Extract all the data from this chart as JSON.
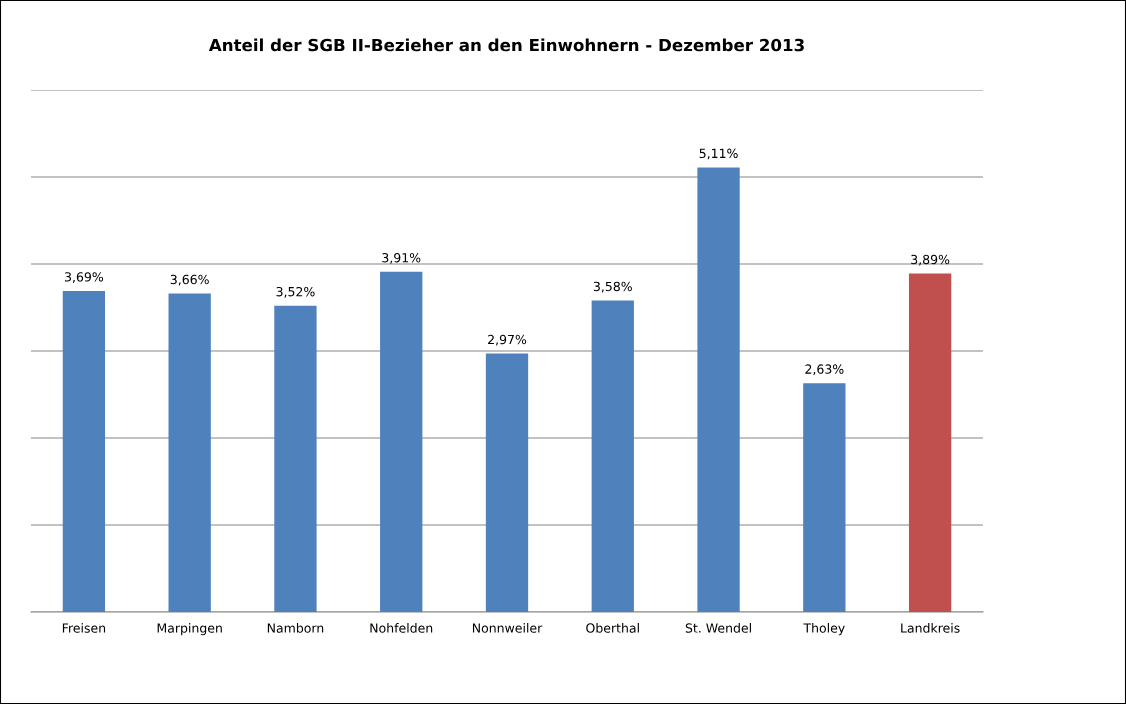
{
  "chart_data": {
    "type": "bar",
    "title": "Anteil der SGB II-Bezieher an den Einwohnern - Dezember 2013",
    "categories": [
      "Freisen",
      "Marpingen",
      "Namborn",
      "Nohfelden",
      "Nonnweiler",
      "Oberthal",
      "St. Wendel",
      "Tholey",
      "Landkreis"
    ],
    "values": [
      3.69,
      3.66,
      3.52,
      3.91,
      2.97,
      3.58,
      5.11,
      2.63,
      3.89
    ],
    "colors": [
      "#4f81bd",
      "#4f81bd",
      "#4f81bd",
      "#4f81bd",
      "#4f81bd",
      "#4f81bd",
      "#4f81bd",
      "#4f81bd",
      "#c0504d"
    ],
    "value_labels": [
      "3,69%",
      "3,66%",
      "3,52%",
      "3,91%",
      "2,97%",
      "3,58%",
      "5,11%",
      "2,63%",
      "3,89%"
    ],
    "ylim": [
      0,
      6
    ],
    "yticks": [
      {
        "value": 0,
        "label": null
      },
      {
        "value": 1,
        "label": null
      },
      {
        "value": 2,
        "label": null
      },
      {
        "value": 3,
        "label": null
      },
      {
        "value": 4,
        "label": null
      },
      {
        "value": 5,
        "label": null
      },
      {
        "value": 6,
        "label": null
      }
    ],
    "tick_labels": "x",
    "grid": "y",
    "legend": false
  }
}
